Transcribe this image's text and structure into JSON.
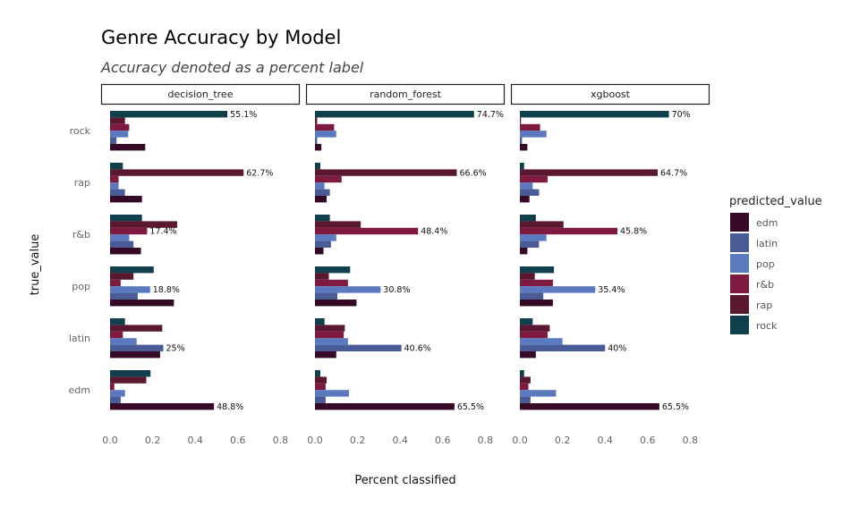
{
  "chart_data": {
    "type": "bar",
    "orientation": "horizontal",
    "title": "Genre Accuracy by Model",
    "subtitle": "Accuracy denoted as a percent label",
    "xlabel": "Percent classified",
    "ylabel": "true_value",
    "xlim": [
      0,
      0.8
    ],
    "x_ticks": [
      "0.0",
      "0.2",
      "0.4",
      "0.6",
      "0.8"
    ],
    "x_tick_values": [
      0,
      0.2,
      0.4,
      0.6,
      0.8
    ],
    "true_values": [
      "rock",
      "rap",
      "r&b",
      "pop",
      "latin",
      "edm"
    ],
    "legend": {
      "title": "predicted_value",
      "placement": "right",
      "items": [
        "edm",
        "latin",
        "pop",
        "r&b",
        "rap",
        "rock"
      ]
    },
    "colors": {
      "edm": "#360a26",
      "latin": "#4a5c96",
      "pop": "#5a79be",
      "r&b": "#7e1a40",
      "rap": "#5a1730",
      "rock": "#10404c"
    },
    "panels": [
      {
        "name": "decision_tree",
        "rows": {
          "rock": {
            "rock": 0.551,
            "rap": 0.07,
            "r&b": 0.09,
            "pop": 0.085,
            "latin": 0.03,
            "edm": 0.165,
            "label": "55.1%"
          },
          "rap": {
            "rock": 0.06,
            "rap": 0.627,
            "r&b": 0.04,
            "pop": 0.04,
            "latin": 0.07,
            "edm": 0.15,
            "label": "62.7%"
          },
          "r&b": {
            "rock": 0.15,
            "rap": 0.315,
            "r&b": 0.174,
            "pop": 0.09,
            "latin": 0.11,
            "edm": 0.145,
            "label": "17.4%"
          },
          "pop": {
            "rock": 0.205,
            "rap": 0.11,
            "r&b": 0.05,
            "pop": 0.188,
            "latin": 0.13,
            "edm": 0.3,
            "label": "18.8%"
          },
          "latin": {
            "rock": 0.07,
            "rap": 0.245,
            "r&b": 0.06,
            "pop": 0.125,
            "latin": 0.25,
            "edm": 0.235,
            "label": "25%"
          },
          "edm": {
            "rock": 0.19,
            "rap": 0.17,
            "r&b": 0.02,
            "pop": 0.07,
            "latin": 0.05,
            "edm": 0.488,
            "label": "48.8%"
          }
        }
      },
      {
        "name": "random_forest",
        "rows": {
          "rock": {
            "rock": 0.747,
            "rap": 0.01,
            "r&b": 0.09,
            "pop": 0.1,
            "latin": 0.01,
            "edm": 0.03,
            "label": "74.7%"
          },
          "rap": {
            "rock": 0.025,
            "rap": 0.666,
            "r&b": 0.125,
            "pop": 0.045,
            "latin": 0.07,
            "edm": 0.055,
            "label": "66.6%"
          },
          "r&b": {
            "rock": 0.07,
            "rap": 0.215,
            "r&b": 0.484,
            "pop": 0.1,
            "latin": 0.075,
            "edm": 0.04,
            "label": "48.4%"
          },
          "pop": {
            "rock": 0.165,
            "rap": 0.065,
            "r&b": 0.155,
            "pop": 0.308,
            "latin": 0.105,
            "edm": 0.195,
            "label": "30.8%"
          },
          "latin": {
            "rock": 0.045,
            "rap": 0.14,
            "r&b": 0.135,
            "pop": 0.155,
            "latin": 0.406,
            "edm": 0.1,
            "label": "40.6%"
          },
          "edm": {
            "rock": 0.025,
            "rap": 0.055,
            "r&b": 0.05,
            "pop": 0.16,
            "latin": 0.05,
            "edm": 0.655,
            "label": "65.5%"
          }
        }
      },
      {
        "name": "xgboost",
        "rows": {
          "rock": {
            "rock": 0.7,
            "rap": 0.005,
            "r&b": 0.095,
            "pop": 0.125,
            "latin": 0.01,
            "edm": 0.035,
            "label": "70%"
          },
          "rap": {
            "rock": 0.02,
            "rap": 0.647,
            "r&b": 0.13,
            "pop": 0.06,
            "latin": 0.09,
            "edm": 0.045,
            "label": "64.7%"
          },
          "r&b": {
            "rock": 0.075,
            "rap": 0.205,
            "r&b": 0.458,
            "pop": 0.125,
            "latin": 0.09,
            "edm": 0.035,
            "label": "45.8%"
          },
          "pop": {
            "rock": 0.16,
            "rap": 0.07,
            "r&b": 0.155,
            "pop": 0.354,
            "latin": 0.11,
            "edm": 0.155,
            "label": "35.4%"
          },
          "latin": {
            "rock": 0.06,
            "rap": 0.14,
            "r&b": 0.13,
            "pop": 0.2,
            "latin": 0.4,
            "edm": 0.075,
            "label": "40%"
          },
          "edm": {
            "rock": 0.02,
            "rap": 0.05,
            "r&b": 0.04,
            "pop": 0.17,
            "latin": 0.05,
            "edm": 0.655,
            "label": "65.5%"
          }
        }
      }
    ]
  }
}
